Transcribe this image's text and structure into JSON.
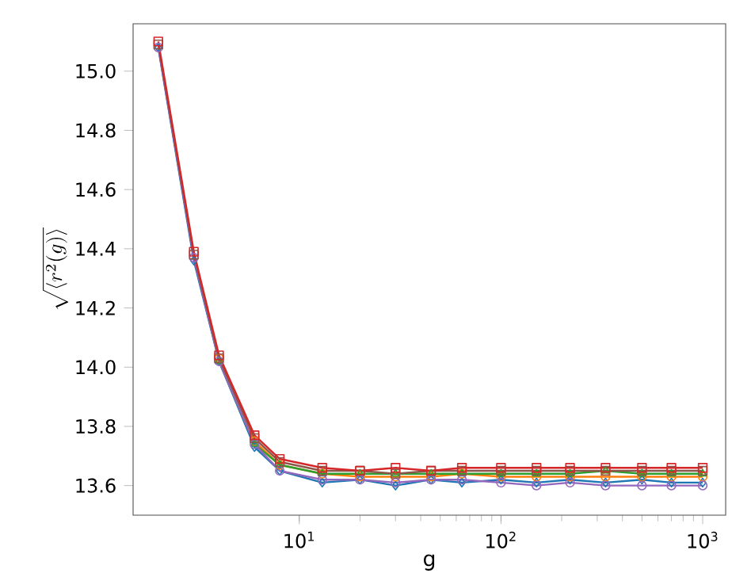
{
  "chart_data": {
    "type": "line",
    "xlabel": "g",
    "ylabel": "\\sqrt{\\langle r^2(g)\\rangle}",
    "log": "x",
    "x": [
      2,
      3,
      4,
      6,
      8,
      13,
      20,
      30,
      45,
      64,
      100,
      150,
      220,
      330,
      500,
      700,
      1000
    ],
    "xlim": [
      1.5,
      1300
    ],
    "ylim": [
      13.5,
      15.16
    ],
    "xticks": [
      {
        "value": 10,
        "label": "10$^{1}$"
      },
      {
        "value": 100,
        "label": "10$^{2}$"
      },
      {
        "value": 1000,
        "label": "10$^{3}$"
      }
    ],
    "yticks": [
      13.6,
      13.8,
      {
        "value": 14,
        "label": "14.0"
      },
      14.2,
      14.4,
      14.6,
      14.8,
      {
        "value": 15,
        "label": "15.0"
      }
    ],
    "grid": false,
    "series": [
      {
        "color": "#1f77b4",
        "marker": "diamond",
        "values": [
          15.08,
          14.36,
          14.02,
          13.73,
          13.65,
          13.61,
          13.62,
          13.6,
          13.62,
          13.61,
          13.62,
          13.61,
          13.62,
          13.61,
          13.62,
          13.61,
          13.61
        ]
      },
      {
        "color": "#ff7f0e",
        "marker": "circle",
        "values": [
          null,
          null,
          14.03,
          13.75,
          13.67,
          13.64,
          13.63,
          13.63,
          13.63,
          13.64,
          13.63,
          13.63,
          13.63,
          13.63,
          13.63,
          13.63,
          13.63
        ]
      },
      {
        "color": "#2ca02c",
        "marker": "triangle",
        "values": [
          null,
          null,
          14.02,
          13.74,
          13.67,
          13.64,
          13.64,
          13.64,
          13.64,
          13.64,
          13.64,
          13.64,
          13.64,
          13.65,
          13.64,
          13.64,
          13.64
        ]
      },
      {
        "color": "#9467bd",
        "marker": "circle",
        "values": [
          15.08,
          14.37,
          14.02,
          13.74,
          13.65,
          13.62,
          13.62,
          13.61,
          13.62,
          13.62,
          13.61,
          13.6,
          13.61,
          13.6,
          13.6,
          13.6,
          13.6
        ]
      },
      {
        "color": "#8c564b",
        "marker": "square",
        "values": [
          15.09,
          14.38,
          14.03,
          13.76,
          13.68,
          13.65,
          13.65,
          13.64,
          13.65,
          13.65,
          13.65,
          13.65,
          13.65,
          13.65,
          13.65,
          13.65,
          13.65
        ]
      },
      {
        "color": "#d62728",
        "marker": "square",
        "values": [
          15.1,
          14.39,
          14.04,
          13.77,
          13.69,
          13.66,
          13.65,
          13.66,
          13.65,
          13.66,
          13.66,
          13.66,
          13.66,
          13.66,
          13.66,
          13.66,
          13.66
        ]
      }
    ]
  }
}
